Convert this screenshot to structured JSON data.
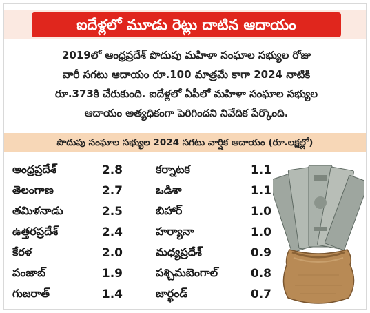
{
  "title": "ఐదేళ్లలో మూడు రెట్లు దాటిన ఆదాయం",
  "summary_lines": [
    "2019లో ఆంధ్రప్రదేశ్ పొదుపు మహిళా సంఘాల సభ్యుల రోజు",
    "వారీ సగటు ఆదాయం రూ.100 మాత్రమే కాగా 2024 నాటికి",
    "రూ.373కి చేరుకుంది. ఐదేళ్లలో ఏపీలో మహిళా సంఘాల సభ్యుల",
    "ఆదాయం అత్యధికంగా పెరిగిందని నివేదిక పేర్కొంది."
  ],
  "table_title": "పొదుపు సంఘాల సభ్యుల 2024 సగటు వార్షిక ఆదాయం (రూ.లక్షల్లో)",
  "table_left": [
    {
      "state": "ఆంధ్రప్రదేశ్",
      "value": "2.8"
    },
    {
      "state": "తెలంగాణ",
      "value": "2.7"
    },
    {
      "state": "తమిళనాడు",
      "value": "2.5"
    },
    {
      "state": "ఉత్తరప్రదేశ్",
      "value": "2.4"
    },
    {
      "state": "కేరళ",
      "value": "2.0"
    },
    {
      "state": "పంజాబ్",
      "value": "1.9"
    },
    {
      "state": "గుజరాత్",
      "value": "1.4"
    }
  ],
  "table_right": [
    {
      "state": "కర్నాటక",
      "value": "1.1"
    },
    {
      "state": "ఒడిశా",
      "value": "1.1"
    },
    {
      "state": "బిహార్",
      "value": "1.0"
    },
    {
      "state": "హర్యానా",
      "value": "1.0"
    },
    {
      "state": "మధ్యప్రదేశ్",
      "value": "0.9"
    },
    {
      "state": "పశ్చిమబెంగాల్",
      "value": "0.8"
    },
    {
      "state": "జార్ఖండ్",
      "value": "0.7"
    }
  ],
  "colors": {
    "title_bg": "#e0261d",
    "title_band_bg": "#fbe9e1",
    "subtitle_bg": "#f7d7b7",
    "text": "#1a1a1a"
  },
  "illustration": "money-bag-with-banknotes"
}
